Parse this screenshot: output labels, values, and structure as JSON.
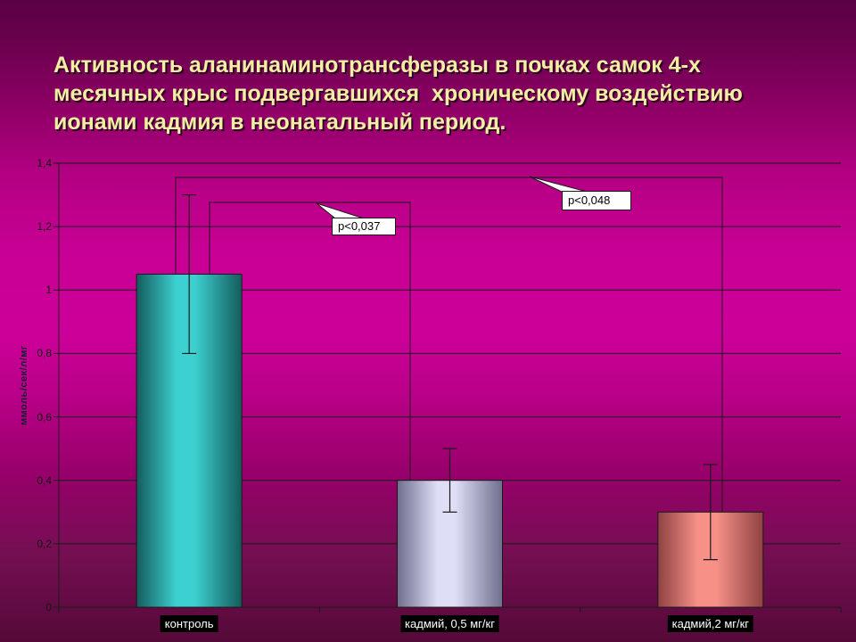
{
  "slide": {
    "title_lines": [
      "Активность аланинаминотрансферазы в почках самок 4-х",
      "месячных крыс подвергавшихся  хроническому воздействию",
      "ионами кадмия в неонатальный период."
    ],
    "title_color": "#f3eea4",
    "background_colors": {
      "top": "#5a0144",
      "middle": "#cc0099",
      "bottom": "#550939"
    }
  },
  "chart_data": {
    "type": "bar",
    "title": "",
    "xlabel": "",
    "ylabel": "ммоль/сек/л/мг",
    "categories": [
      "контроль",
      "кадмий, 0,5 мг/кг",
      "кадмий,2 мг/кг"
    ],
    "values": [
      1.05,
      0.4,
      0.3
    ],
    "error_low": [
      0.8,
      0.3,
      0.15
    ],
    "error_high": [
      1.3,
      0.5,
      0.45
    ],
    "ylim": [
      0,
      1.4
    ],
    "ytick_values": [
      0,
      0.2,
      0.4,
      0.6,
      0.8,
      1,
      1.2,
      1.4
    ],
    "ytick_labels": [
      "0",
      "0,2",
      "0,4",
      "0,6",
      "0,8",
      "1",
      "1,2",
      "1,4"
    ],
    "grid": true,
    "legend": false,
    "axis_color": "#1a1a1a",
    "bar_colors": [
      {
        "edge": "#145c5c",
        "mid": "#3dd0d0"
      },
      {
        "edge": "#6e6e8e",
        "mid": "#dedef6"
      },
      {
        "edge": "#8f4242",
        "mid": "#f79188"
      }
    ],
    "category_label_style": {
      "background": "#000000",
      "text": "#ffffff"
    },
    "annotations": [
      {
        "label": "p<0,037",
        "between": [
          "контроль",
          "кадмий, 0,5 мг/кг"
        ]
      },
      {
        "label": "p<0,048",
        "between": [
          "контроль",
          "кадмий,2 мг/кг"
        ]
      }
    ]
  }
}
